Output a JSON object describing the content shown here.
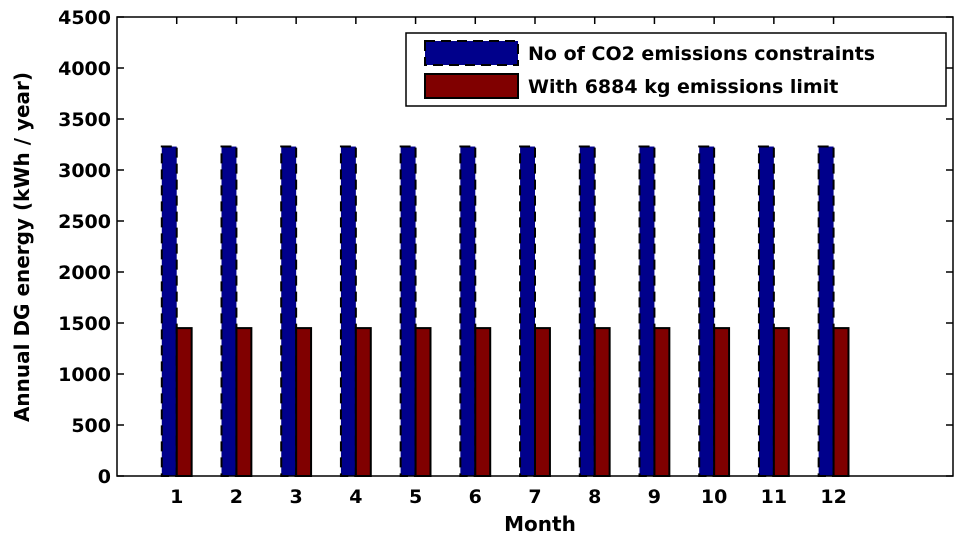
{
  "chart_data": {
    "type": "bar",
    "xlabel": "Month",
    "ylabel": "Annual DG energy (kWh / year)",
    "ylim": [
      0,
      4500
    ],
    "yticks": [
      0,
      500,
      1000,
      1500,
      2000,
      2500,
      3000,
      3500,
      4000,
      4500
    ],
    "xlim": [
      0,
      14
    ],
    "categories": [
      "1",
      "2",
      "3",
      "4",
      "5",
      "6",
      "7",
      "8",
      "9",
      "10",
      "11",
      "12"
    ],
    "series": [
      {
        "name": "No of CO2 emissions constraints",
        "color": "#00008b",
        "edge": "dashed",
        "values": [
          3230,
          3230,
          3230,
          3230,
          3230,
          3230,
          3230,
          3230,
          3230,
          3230,
          3230,
          3230
        ]
      },
      {
        "name": "With 6884 kg emissions limit",
        "color": "#800000",
        "edge": "solid",
        "values": [
          1450,
          1450,
          1450,
          1450,
          1450,
          1450,
          1450,
          1450,
          1450,
          1450,
          1450,
          1450
        ]
      }
    ],
    "legend_position": "top-right",
    "grid": false
  }
}
